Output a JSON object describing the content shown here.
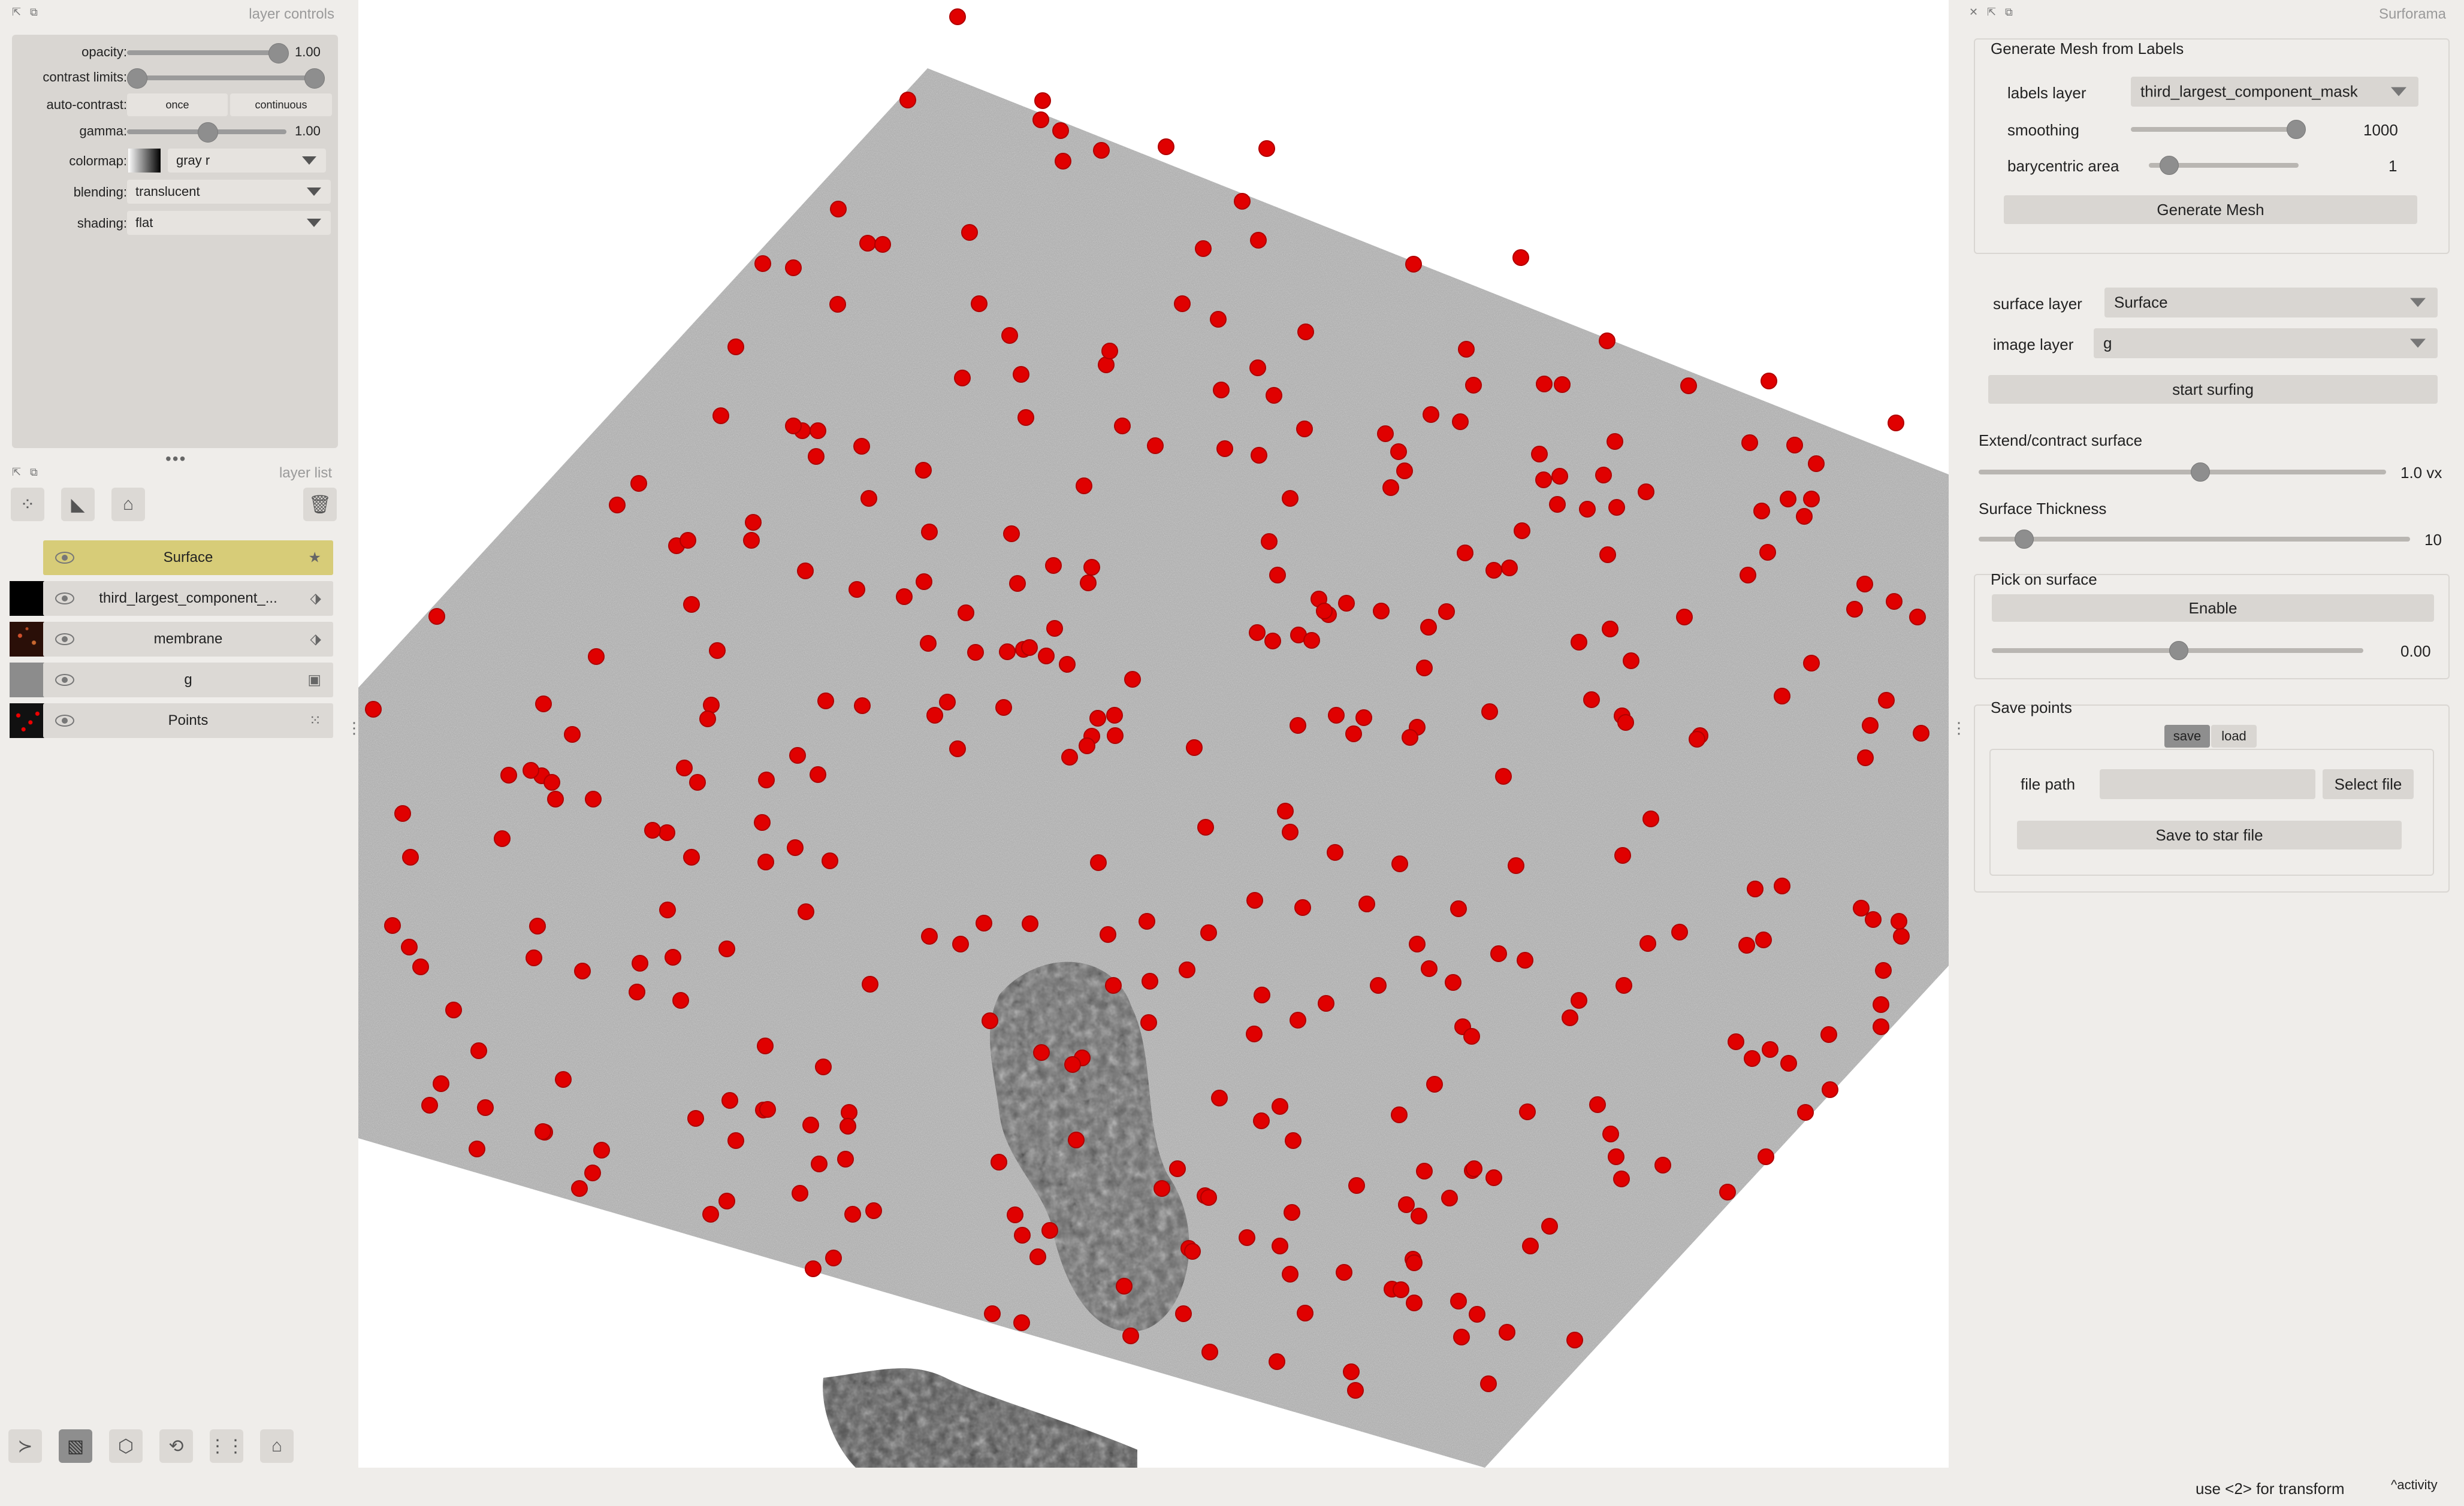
{
  "left_dock": {
    "controls_title": "layer controls",
    "opacity": {
      "label": "opacity:",
      "value": "1.00",
      "fraction": 1.0
    },
    "contrast": {
      "label": "contrast limits:"
    },
    "auto_contrast": {
      "label": "auto-contrast:",
      "once": "once",
      "continuous": "continuous"
    },
    "gamma": {
      "label": "gamma:",
      "value": "1.00",
      "fraction": 0.5
    },
    "colormap": {
      "label": "colormap:",
      "value": "gray r"
    },
    "blending": {
      "label": "blending:",
      "value": "translucent"
    },
    "shading": {
      "label": "shading:",
      "value": "flat"
    },
    "list_title": "layer list",
    "layers": [
      {
        "name": "Surface",
        "selected": true,
        "icon": "star-icon"
      },
      {
        "name": "third_largest_component_...",
        "selected": false,
        "icon": "tag-icon"
      },
      {
        "name": "membrane",
        "selected": false,
        "icon": "tag-icon"
      },
      {
        "name": "g",
        "selected": false,
        "icon": "image-icon"
      },
      {
        "name": "Points",
        "selected": false,
        "icon": "points-icon"
      }
    ]
  },
  "right_dock": {
    "title": "Surforama",
    "generate": {
      "title": "Generate Mesh from Labels",
      "labels_layer_label": "labels layer",
      "labels_layer_value": "third_largest_component_mask",
      "smoothing_label": "smoothing",
      "smoothing_value": "1000",
      "smoothing_fraction": 1.0,
      "bary_label": "barycentric area",
      "bary_value": "1",
      "bary_fraction": 0.1,
      "button": "Generate Mesh"
    },
    "surface_layer_label": "surface layer",
    "surface_layer_value": "Surface",
    "image_layer_label": "image layer",
    "image_layer_value": "g",
    "start_button": "start surfing",
    "extend_label": "Extend/contract surface",
    "extend_value": "1.0 vx",
    "extend_fraction": 0.55,
    "thickness_label": "Surface Thickness",
    "thickness_value": "10",
    "thickness_fraction": 0.06,
    "pick": {
      "title": "Pick on surface",
      "button": "Enable",
      "value": "0.00",
      "fraction": 0.5
    },
    "save": {
      "title": "Save points",
      "tab_save": "save",
      "tab_load": "load",
      "file_path_label": "file path",
      "select_button": "Select file",
      "save_button": "Save to star file"
    }
  },
  "status_bar": {
    "text": "use <2> for transform",
    "activity": "activity"
  }
}
